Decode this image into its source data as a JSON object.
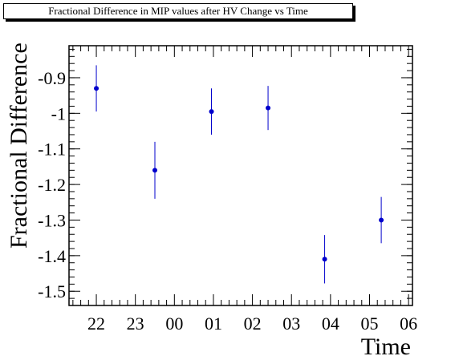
{
  "chart_data": {
    "type": "scatter",
    "title": "Fractional Difference in MIP values after HV Change vs Time",
    "xlabel": "Time",
    "ylabel": "Fractional Difference",
    "x_ticks": [
      "22",
      "23",
      "00",
      "01",
      "02",
      "03",
      "04",
      "05",
      "06"
    ],
    "y_ticks": [
      -0.9,
      -1,
      -1.1,
      -1.2,
      -1.3,
      -1.4,
      -1.5
    ],
    "y_tick_labels": [
      "-0.9",
      "-1",
      "-1.1",
      "-1.2",
      "-1.3",
      "-1.4",
      "-1.5"
    ],
    "xlim_hours": [
      21.3,
      30.1
    ],
    "ylim": [
      -1.54,
      -0.81
    ],
    "points": [
      {
        "x": 22.0,
        "y": -0.93,
        "err": 0.065
      },
      {
        "x": 23.5,
        "y": -1.16,
        "err": 0.08
      },
      {
        "x": 24.95,
        "y": -0.995,
        "err": 0.065
      },
      {
        "x": 26.4,
        "y": -0.985,
        "err": 0.062
      },
      {
        "x": 27.85,
        "y": -1.41,
        "err": 0.068
      },
      {
        "x": 29.3,
        "y": -1.3,
        "err": 0.065
      }
    ],
    "grid": false,
    "colors": {
      "points": "#0000cc",
      "axes": "#000000"
    }
  }
}
